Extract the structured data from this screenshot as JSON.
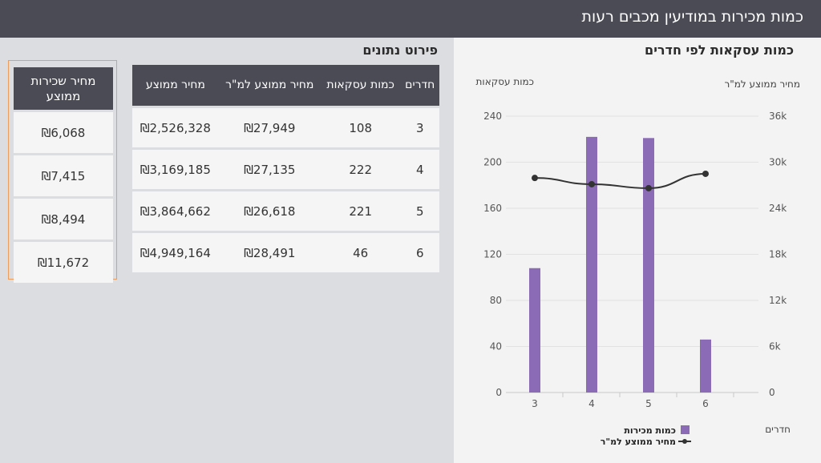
{
  "header": {
    "title": "כמות מכירות במודיעין מכבים רעות"
  },
  "chart_section": {
    "title": "כמות עסקאות לפי חדרים"
  },
  "details_section": {
    "title": "פירוט נתונים"
  },
  "table": {
    "headers": [
      "חדרים",
      "כמות עסקאות",
      "מחיר ממוצע למ\"ר",
      "מחיר ממוצע"
    ],
    "rows": [
      [
        "3",
        "108",
        "₪27,949",
        "₪2,526,328"
      ],
      [
        "4",
        "222",
        "₪27,135",
        "₪3,169,185"
      ],
      [
        "5",
        "221",
        "₪26,618",
        "₪3,864,662"
      ],
      [
        "6",
        "46",
        "₪28,491",
        "₪4,949,164"
      ]
    ]
  },
  "rent_table": {
    "header": "מחיר שכירות ממוצע",
    "rows": [
      "₪6,068",
      "₪7,415",
      "₪8,494",
      "₪11,672"
    ]
  },
  "colors": {
    "bar": "#8b6bb5",
    "line": "#333333",
    "header_bg": "#4a4b54",
    "highlight_border": "#ef9b5c"
  },
  "chart_data": {
    "type": "bar",
    "categories": [
      "3",
      "4",
      "5",
      "6"
    ],
    "series": [
      {
        "name": "כמות מכירות",
        "type": "bar",
        "axis": "left",
        "values": [
          108,
          222,
          221,
          46
        ]
      },
      {
        "name": "מחיר ממוצע למ\"ר",
        "type": "line",
        "axis": "right",
        "values": [
          27949,
          27135,
          26618,
          28491
        ]
      }
    ],
    "xlabel": "חדרים",
    "ylabel_left": "כמות עסקאות",
    "ylabel_right": "מחיר ממוצע למ\"ר",
    "ylim_left": [
      0,
      240
    ],
    "yticks_left": [
      "0",
      "40",
      "80",
      "120",
      "160",
      "200",
      "240"
    ],
    "ylim_right": [
      0,
      36000
    ],
    "yticks_right": [
      "0",
      "6k",
      "12k",
      "18k",
      "24k",
      "30k",
      "36k"
    ],
    "legend_position": "bottom",
    "grid": true
  }
}
